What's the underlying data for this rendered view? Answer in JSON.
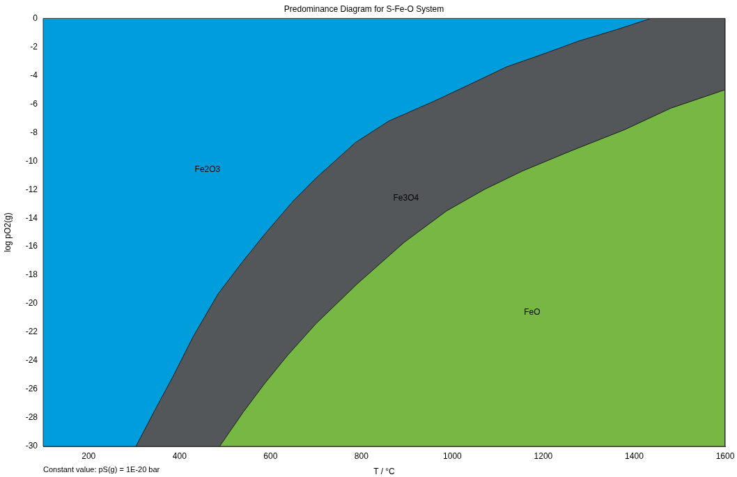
{
  "chart_data": {
    "type": "area",
    "title": "Predominance Diagram for S-Fe-O System",
    "xlabel": "T / °C",
    "ylabel": "log pO2(g)",
    "xlim": [
      100,
      1600
    ],
    "xticks": [
      200,
      400,
      600,
      800,
      1000,
      1200,
      1400,
      1600
    ],
    "ylim": [
      -30,
      0
    ],
    "yticks": [
      0,
      -2,
      -4,
      -6,
      -8,
      -10,
      -12,
      -14,
      -16,
      -18,
      -20,
      -22,
      -24,
      -26,
      -28,
      -30
    ],
    "bands": [
      {
        "axis": "y",
        "from": -30,
        "to": 0,
        "color": "#009ddc"
      }
    ],
    "series": [
      {
        "color": "#54575a",
        "x": [
          304,
          350,
          384,
          430,
          485,
          540,
          588,
          650,
          700,
          787,
          860,
          960,
          1047,
          1119,
          1200,
          1277,
          1360,
          1437,
          1600,
          1600
        ],
        "values": [
          -30,
          -27.2,
          -25.2,
          -22.3,
          -19.3,
          -17,
          -15.1,
          -12.8,
          -11.2,
          -8.7,
          -7.2,
          -5.8,
          -4.5,
          -3.4,
          -2.5,
          -1.6,
          -0.8,
          0,
          0,
          -30
        ]
      },
      {
        "color": "#76b843",
        "x": [
          488,
          540,
          587,
          638,
          700,
          791,
          894,
          987,
          1070,
          1154,
          1260,
          1379,
          1480,
          1600,
          1600
        ],
        "values": [
          -30,
          -27.6,
          -25.6,
          -23.6,
          -21.4,
          -18.6,
          -15.7,
          -13.5,
          -12,
          -10.7,
          -9.3,
          -7.8,
          -6.3,
          -5,
          -30
        ]
      }
    ],
    "annotations": [
      "Fe2O3",
      "Fe3O4",
      "FeO",
      "Constant value: pS(g) = 1E-20 bar"
    ],
    "grid": false,
    "legend": false
  }
}
